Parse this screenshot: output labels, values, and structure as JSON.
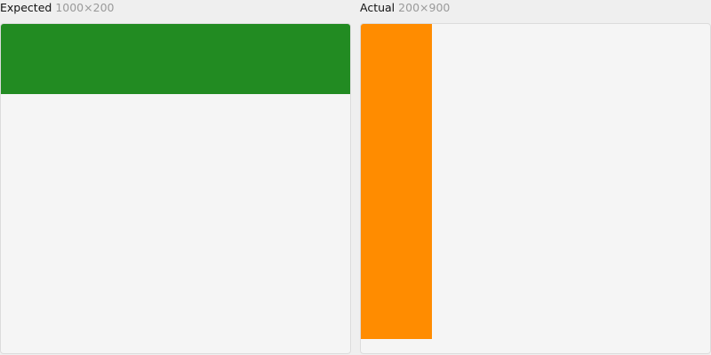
{
  "expected": {
    "label": "Expected",
    "dimensions": "1000×200",
    "box_color": "#228b22"
  },
  "actual": {
    "label": "Actual",
    "dimensions": "200×900",
    "box_color": "#ff8c00"
  }
}
